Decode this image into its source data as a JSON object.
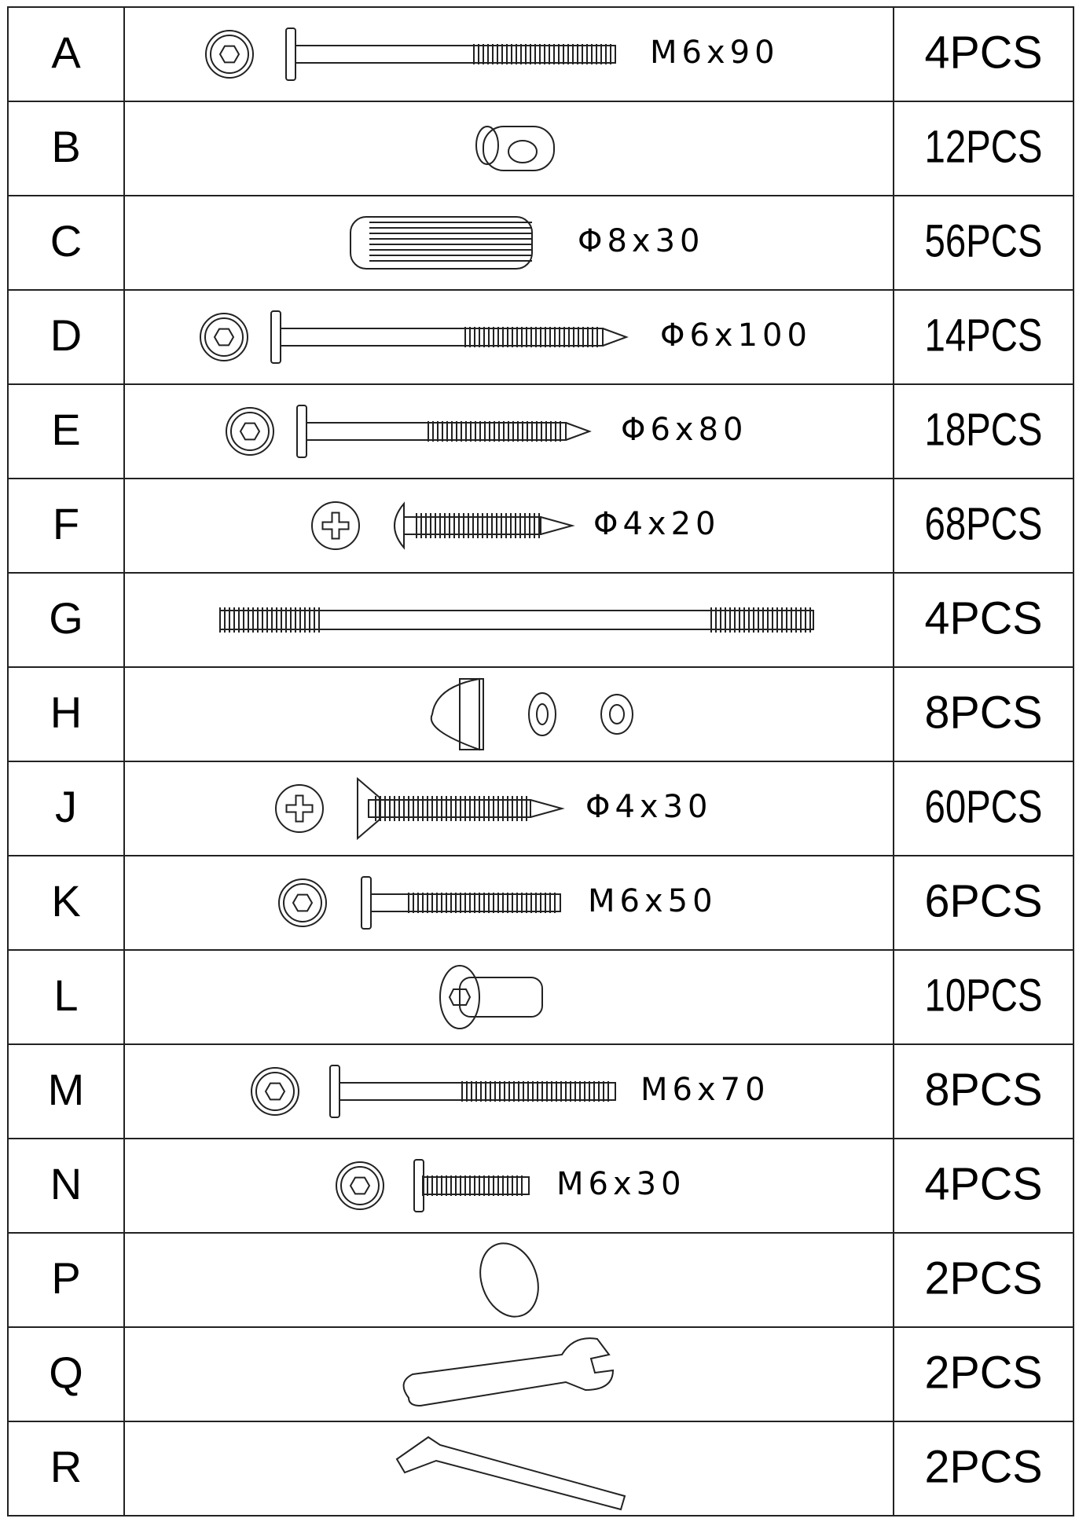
{
  "rows": [
    {
      "letter": "A",
      "spec": "M6x90",
      "qty": "4PCS"
    },
    {
      "letter": "B",
      "qty": "12PCS"
    },
    {
      "letter": "C",
      "spec": "Φ8x30",
      "qty": "56PCS"
    },
    {
      "letter": "D",
      "spec": "Φ6x100",
      "qty": "14PCS"
    },
    {
      "letter": "E",
      "spec": "Φ6x80",
      "qty": "18PCS"
    },
    {
      "letter": "F",
      "spec": "Φ4x20",
      "qty": "68PCS"
    },
    {
      "letter": "G",
      "qty": "4PCS"
    },
    {
      "letter": "H",
      "qty": "8PCS"
    },
    {
      "letter": "J",
      "spec": "Φ4x30",
      "qty": "60PCS"
    },
    {
      "letter": "K",
      "spec": "M6x50",
      "qty": "6PCS"
    },
    {
      "letter": "L",
      "qty": "10PCS"
    },
    {
      "letter": "M",
      "spec": "M6x70",
      "qty": "8PCS"
    },
    {
      "letter": "N",
      "spec": "M6x30",
      "qty": "4PCS"
    },
    {
      "letter": "P",
      "qty": "2PCS"
    },
    {
      "letter": "Q",
      "qty": "2PCS"
    },
    {
      "letter": "R",
      "qty": "2PCS"
    }
  ]
}
